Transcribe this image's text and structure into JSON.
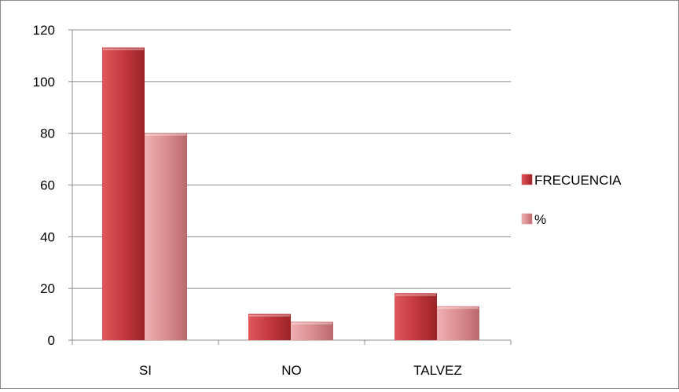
{
  "chart_data": {
    "type": "bar",
    "bar_style": "3d",
    "title": "",
    "xlabel": "",
    "ylabel": "",
    "categories": [
      "SI",
      "NO",
      "TALVEZ"
    ],
    "series": [
      {
        "name": "FRECUENCIA",
        "values": [
          113,
          10,
          18
        ],
        "color": "#c0363a"
      },
      {
        "name": "%",
        "values": [
          80,
          7,
          13
        ],
        "color": "#d98a8c"
      }
    ],
    "ylim": [
      0,
      120
    ],
    "yticks": [
      0,
      20,
      40,
      60,
      80,
      100,
      120
    ],
    "grid": true,
    "legend": "right"
  }
}
